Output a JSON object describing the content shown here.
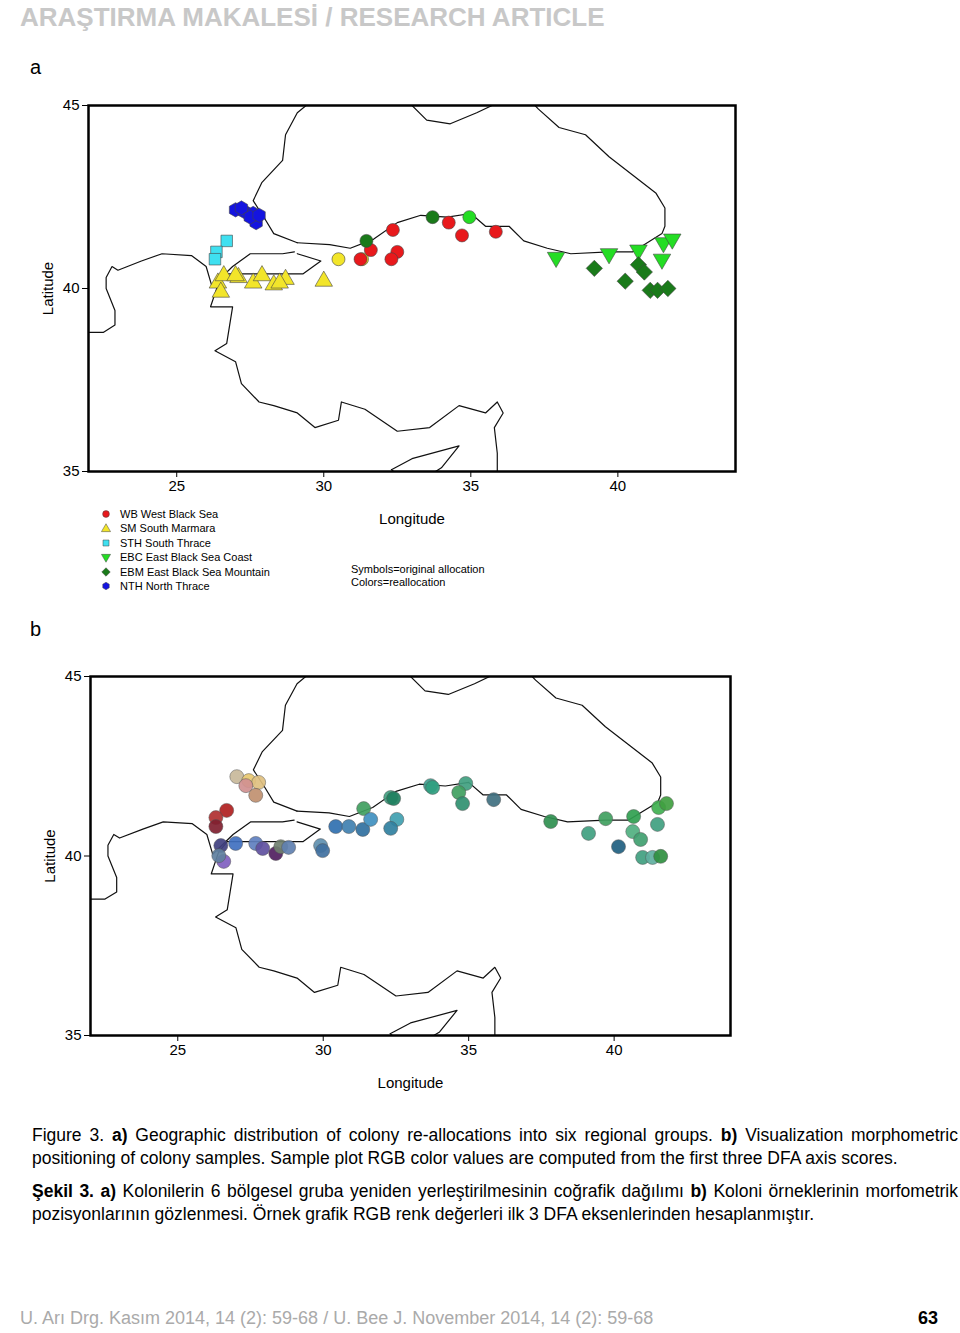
{
  "header": "ARAŞTIRMA MAKALESİ / RESEARCH ARTICLE",
  "footer": {
    "left": "U. Arı Drg. Kasım 2014, 14 (2): 59-68 / U. Bee J. November 2014, 14 (2): 59-68",
    "page": "63"
  },
  "caption": [
    [
      {
        "text": "Figure 3. "
      },
      {
        "text": "a)",
        "bold": true
      },
      {
        "text": " Geographic distribution of colony re-allocations into six regional groups. "
      },
      {
        "text": "b)",
        "bold": true
      },
      {
        "text": " Visualization morphometric positioning of colony samples. Sample plot RGB color values are computed from the first three DFA axis scores."
      }
    ],
    [
      {
        "text": "Şekil 3. ",
        "bold": true
      },
      {
        "text": "a)",
        "bold": true
      },
      {
        "text": " Kolonilerin 6 bölgesel gruba yeniden yerleştirilmesinin coğrafik dağılımı "
      },
      {
        "text": "b)",
        "bold": true
      },
      {
        "text": " Koloni örneklerinin morfometrik pozisyonlarının gözlenmesi. Örnek grafik RGB renk değerleri ilk 3 DFA eksenlerinden hesaplanmıştır."
      }
    ]
  ],
  "coastlines": [
    [
      [
        29.1,
        41.25
      ],
      [
        28.3,
        41.5
      ],
      [
        28.0,
        41.9
      ],
      [
        27.6,
        42.4
      ],
      [
        27.9,
        42.9
      ],
      [
        28.6,
        43.5
      ],
      [
        28.7,
        44.2
      ],
      [
        29.1,
        44.8
      ],
      [
        29.7,
        45.2
      ]
    ],
    [
      [
        32.5,
        45.4
      ],
      [
        33.5,
        44.6
      ],
      [
        34.3,
        44.5
      ],
      [
        35.2,
        44.8
      ],
      [
        36.5,
        45.3
      ],
      [
        36.7,
        45.4
      ]
    ],
    [
      [
        36.7,
        45.4
      ],
      [
        37.3,
        44.9
      ],
      [
        38.0,
        44.4
      ],
      [
        38.9,
        44.2
      ],
      [
        39.7,
        43.6
      ],
      [
        40.5,
        43.1
      ],
      [
        41.3,
        42.6
      ],
      [
        41.6,
        42.2
      ],
      [
        41.6,
        41.7
      ],
      [
        41.5,
        41.5
      ],
      [
        40.5,
        41.0
      ],
      [
        39.7,
        41.0
      ],
      [
        38.4,
        40.95
      ],
      [
        37.6,
        41.1
      ],
      [
        36.8,
        41.3
      ],
      [
        36.3,
        41.7
      ],
      [
        35.5,
        41.7
      ],
      [
        35.0,
        42.05
      ],
      [
        34.2,
        41.95
      ],
      [
        33.3,
        42.0
      ],
      [
        32.5,
        41.8
      ],
      [
        31.7,
        41.35
      ],
      [
        30.9,
        41.1
      ],
      [
        30.2,
        41.2
      ],
      [
        29.1,
        41.25
      ]
    ],
    [
      [
        29.0,
        41.0
      ],
      [
        28.6,
        40.95
      ],
      [
        27.5,
        40.95
      ],
      [
        26.9,
        40.6
      ],
      [
        26.2,
        40.05
      ],
      [
        26.0,
        40.6
      ],
      [
        25.5,
        40.9
      ],
      [
        24.5,
        40.95
      ],
      [
        23.8,
        40.75
      ],
      [
        23.0,
        40.5
      ],
      [
        22.8,
        40.6
      ],
      [
        22.6,
        40.3
      ],
      [
        22.6,
        40.0
      ],
      [
        22.9,
        39.4
      ],
      [
        22.9,
        39.0
      ],
      [
        22.5,
        38.8
      ],
      [
        22.0,
        38.8
      ]
    ],
    [
      [
        29.1,
        40.95
      ],
      [
        29.9,
        40.75
      ],
      [
        29.3,
        40.4
      ],
      [
        28.5,
        40.4
      ],
      [
        27.5,
        40.4
      ],
      [
        26.7,
        40.4
      ],
      [
        26.4,
        40.1
      ],
      [
        26.15,
        39.5
      ],
      [
        26.9,
        39.5
      ],
      [
        26.8,
        39.0
      ],
      [
        26.7,
        38.5
      ],
      [
        26.3,
        38.3
      ],
      [
        27.0,
        38.0
      ],
      [
        27.2,
        37.4
      ],
      [
        27.8,
        36.9
      ],
      [
        28.3,
        36.8
      ],
      [
        29.1,
        36.6
      ],
      [
        29.7,
        36.2
      ],
      [
        30.5,
        36.4
      ],
      [
        30.6,
        36.9
      ],
      [
        31.4,
        36.7
      ],
      [
        32.5,
        36.1
      ],
      [
        33.6,
        36.2
      ],
      [
        34.6,
        36.8
      ],
      [
        35.5,
        36.6
      ],
      [
        35.9,
        36.9
      ],
      [
        36.1,
        36.6
      ],
      [
        35.8,
        36.2
      ],
      [
        35.9,
        35.5
      ],
      [
        35.9,
        35.0
      ]
    ],
    [
      [
        32.3,
        35.05
      ],
      [
        33.0,
        35.35
      ],
      [
        34.6,
        35.7
      ],
      [
        34.0,
        35.1
      ],
      [
        33.0,
        34.6
      ],
      [
        32.3,
        35.05
      ]
    ]
  ],
  "chart_data": [
    {
      "panel": "a",
      "type": "scatter",
      "x_label": "Longitude",
      "y_label": "Latitude",
      "xlim": [
        22,
        44
      ],
      "ylim": [
        35,
        45
      ],
      "xticks": [
        25,
        30,
        35,
        40
      ],
      "yticks": [
        35,
        40,
        45
      ],
      "series": [
        {
          "code": "WB",
          "name": "West Black Sea",
          "color": "#e8191c",
          "marker": "circle"
        },
        {
          "code": "SM",
          "name": "South Marmara",
          "color": "#f2e52a",
          "marker": "triangle"
        },
        {
          "code": "STH",
          "name": "South Thrace",
          "color": "#3fe0f0",
          "marker": "square"
        },
        {
          "code": "EBC",
          "name": "East Black Sea Coast",
          "color": "#24dd24",
          "marker": "triangle-down"
        },
        {
          "code": "EBM",
          "name": "East Black Sea Mountain",
          "color": "#1a7a1a",
          "marker": "diamond"
        },
        {
          "code": "NTH",
          "name": "North Thrace",
          "color": "#1414e0",
          "marker": "hexagon"
        }
      ],
      "points": {
        "x": [
          27.0,
          27.3,
          27.6,
          27.7,
          27.2,
          27.5,
          27.8,
          26.7,
          26.35,
          26.3,
          26.4,
          26.5,
          26.6,
          27.1,
          27.6,
          27.9,
          28.3,
          28.7,
          30.0,
          27.0,
          28.5,
          30.5,
          31.3,
          31.6,
          32.35,
          32.5,
          32.3,
          31.25,
          34.25,
          34.7,
          35.85,
          31.45,
          33.7,
          34.95,
          37.9,
          39.7,
          40.7,
          41.55,
          41.85,
          41.5,
          39.2,
          40.25,
          40.7,
          40.9,
          41.1,
          41.35,
          41.7
        ],
        "y": [
          42.15,
          42.1,
          42.05,
          41.8,
          42.2,
          41.95,
          42.0,
          41.3,
          41.0,
          40.8,
          40.15,
          39.9,
          40.35,
          40.3,
          40.15,
          40.35,
          40.1,
          40.25,
          40.2,
          40.35,
          40.15,
          40.8,
          40.8,
          41.05,
          41.6,
          41.0,
          40.8,
          40.8,
          41.8,
          41.45,
          41.55,
          41.3,
          41.95,
          41.95,
          40.85,
          40.95,
          41.05,
          41.25,
          41.35,
          40.8,
          40.55,
          40.2,
          40.65,
          40.45,
          39.95,
          39.95,
          40.0
        ],
        "symbol": [
          "NTH",
          "NTH",
          "NTH",
          "NTH",
          "NTH",
          "NTH",
          "NTH",
          "STH",
          "STH",
          "STH",
          "SM",
          "SM",
          "SM",
          "SM",
          "SM",
          "SM",
          "SM",
          "SM",
          "SM",
          "SM",
          "SM",
          "WB",
          "WB",
          "WB",
          "WB",
          "WB",
          "WB",
          "WB",
          "WB",
          "WB",
          "WB",
          "WB",
          "WB",
          "WB",
          "EBC",
          "EBC",
          "EBC",
          "EBC",
          "EBC",
          "EBC",
          "EBM",
          "EBM",
          "EBM",
          "EBM",
          "EBM",
          "EBM",
          "EBM"
        ],
        "group": [
          "NTH",
          "NTH",
          "NTH",
          "NTH",
          "NTH",
          "NTH",
          "NTH",
          "STH",
          "STH",
          "STH",
          "SM",
          "SM",
          "SM",
          "SM",
          "SM",
          "SM",
          "SM",
          "SM",
          "SM",
          "SM",
          "SM",
          "SM",
          "SM",
          "WB",
          "WB",
          "WB",
          "WB",
          "WB",
          "WB",
          "WB",
          "WB",
          "EBM",
          "EBM",
          "EBC",
          "EBC",
          "EBC",
          "EBC",
          "EBC",
          "EBC",
          "EBC",
          "EBM",
          "EBM",
          "EBM",
          "EBM",
          "EBM",
          "EBM",
          "EBM"
        ]
      },
      "notes": [
        "Symbols=original allocation",
        "Colors=reallocation"
      ]
    },
    {
      "panel": "b",
      "type": "scatter",
      "x_label": "Longitude",
      "y_label": "Latitude",
      "xlim": [
        22,
        44
      ],
      "ylim": [
        35,
        45
      ],
      "xticks": [
        25,
        30,
        35,
        40
      ],
      "yticks": [
        35,
        40,
        45
      ],
      "points": {
        "x": [
          27.03,
          27.44,
          27.78,
          27.34,
          27.68,
          26.68,
          26.31,
          26.31,
          26.48,
          26.58,
          26.41,
          26.99,
          27.68,
          27.92,
          28.37,
          28.54,
          28.81,
          29.91,
          29.98,
          30.43,
          30.88,
          31.36,
          31.39,
          31.63,
          32.32,
          32.42,
          32.53,
          32.32,
          33.69,
          33.76,
          34.9,
          34.66,
          34.79,
          35.86,
          37.82,
          39.12,
          39.71,
          40.15,
          40.67,
          40.64,
          40.91,
          41.49,
          41.53,
          41.8,
          40.98,
          41.32,
          41.6
        ],
        "y": [
          42.21,
          42.1,
          42.05,
          41.96,
          41.69,
          41.27,
          41.07,
          40.82,
          40.29,
          39.85,
          40.01,
          40.35,
          40.35,
          40.21,
          40.07,
          40.26,
          40.24,
          40.29,
          40.15,
          40.82,
          40.82,
          40.74,
          41.32,
          41.02,
          41.63,
          41.6,
          41.02,
          40.77,
          41.96,
          41.91,
          42.02,
          41.77,
          41.46,
          41.57,
          40.96,
          40.63,
          41.04,
          40.26,
          41.1,
          40.68,
          40.46,
          40.88,
          41.35,
          41.46,
          39.96,
          39.96,
          39.99
        ]
      },
      "colors": [
        "#c8b89a",
        "#e8c870",
        "#e0c080",
        "#d09090",
        "#c09070",
        "#b02020",
        "#b03030",
        "#802030",
        "#404080",
        "#8060c0",
        "#6080a0",
        "#4070c0",
        "#6080c0",
        "#6050a0",
        "#502060",
        "#708070",
        "#6080b0",
        "#6090b0",
        "#4070a0",
        "#3070b0",
        "#4080b0",
        "#3070a0",
        "#40a060",
        "#4090c0",
        "#40a080",
        "#208060",
        "#40a0b0",
        "#3080a0",
        "#40a090",
        "#30a080",
        "#40a080",
        "#40a060",
        "#309070",
        "#407080",
        "#309050",
        "#40a080",
        "#40a060",
        "#206080",
        "#30a050",
        "#50b080",
        "#40a070",
        "#40a080",
        "#40b050",
        "#40a040",
        "#40a080",
        "#60b0a0",
        "#309040"
      ]
    }
  ]
}
